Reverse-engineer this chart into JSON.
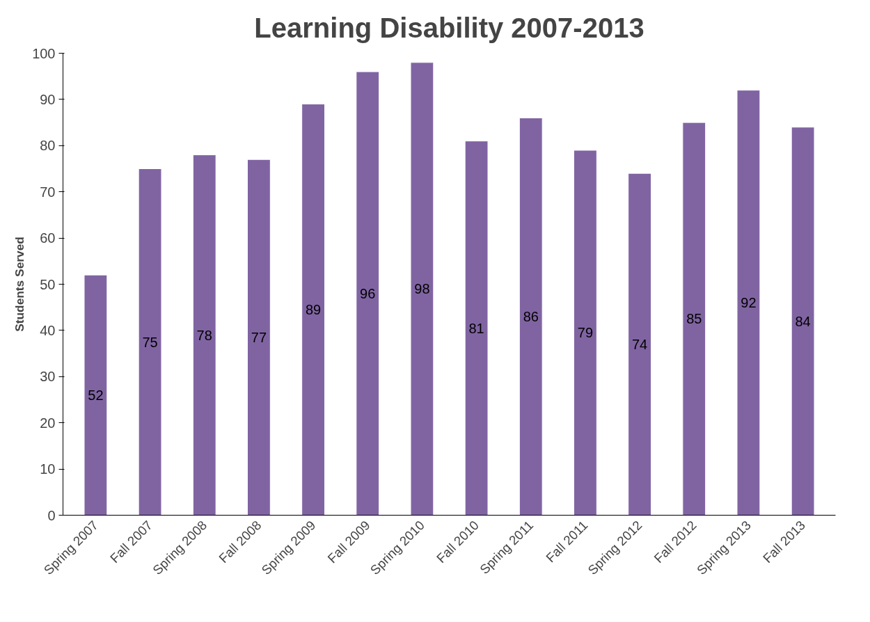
{
  "chart_data": {
    "type": "bar",
    "title": "Learning Disability 2007-2013",
    "ylabel": "Students Served",
    "categories": [
      "Spring 2007",
      "Fall 2007",
      "Spring 2008",
      "Fall 2008",
      "Spring 2009",
      "Fall 2009",
      "Spring 2010",
      "Fall 2010",
      "Spring 2011",
      "Fall 2011",
      "Spring 2012",
      "Fall 2012",
      "Spring 2013",
      "Fall 2013"
    ],
    "values": [
      52,
      75,
      78,
      77,
      89,
      96,
      98,
      81,
      86,
      79,
      74,
      85,
      92,
      84
    ],
    "color": "#8064a2",
    "ylim": [
      0,
      100
    ],
    "yticks": [
      0,
      10,
      20,
      30,
      40,
      50,
      60,
      70,
      80,
      90,
      100
    ],
    "data_labels": true,
    "grid": false
  }
}
